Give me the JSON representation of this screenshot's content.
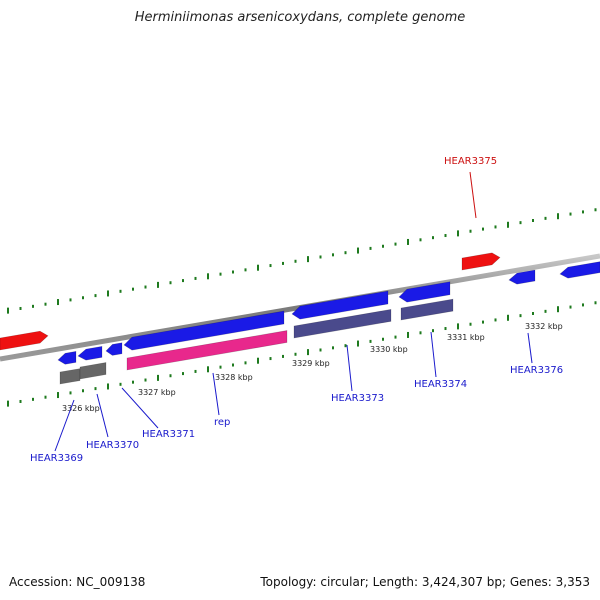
{
  "title": "Herminiimonas arsenicoxydans, complete genome",
  "footer": {
    "accession": "Accession: NC_009138",
    "topology": "Topology: circular; Length: 3,424,307 bp; Genes: 3,353"
  },
  "colors": {
    "backbone": "#8a8a8a",
    "tick_green": "#1e7a1e",
    "forward_cds": "#1a1ae6",
    "reverse_cds": "#ee1111",
    "label_blue": "#1a1acc",
    "label_red": "#cc1111",
    "gene_grey": "#666666",
    "gene_purple": "#4a4a8c",
    "gene_pink": "#e8288c"
  },
  "scale": {
    "labels": [
      "3326 kbp",
      "3327 kbp",
      "3328 kbp",
      "3329 kbp",
      "3330 kbp",
      "3331 kbp",
      "3332 kbp"
    ]
  },
  "genes": [
    {
      "name": "HEAR3369"
    },
    {
      "name": "HEAR3370"
    },
    {
      "name": "HEAR3371"
    },
    {
      "name": "rep"
    },
    {
      "name": "HEAR3373"
    },
    {
      "name": "HEAR3374"
    },
    {
      "name": "HEAR3375"
    },
    {
      "name": "HEAR3376"
    }
  ]
}
